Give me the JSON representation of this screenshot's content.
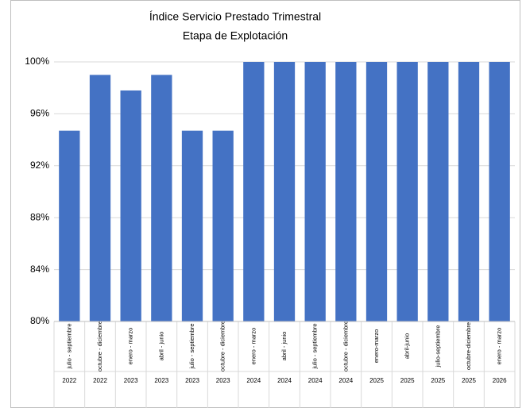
{
  "chart_data": {
    "type": "bar",
    "title": "Índice Servicio Prestado Trimestral",
    "subtitle": "Etapa de Explotación",
    "categories": [
      "julio - septiembre",
      "octubre - diciembre",
      "enero - marzo",
      "abril - junio",
      "julio - septiembre",
      "octubre - diciembre",
      "enero - marzo",
      "abril - junio",
      "julio - septiembre",
      "octubre - diciembre",
      "enero-marzo",
      "abril-junio",
      "julio-septiembre",
      "octubre-diciembre",
      "enero - marzo"
    ],
    "years": [
      "2022",
      "2022",
      "2023",
      "2023",
      "2023",
      "2023",
      "2024",
      "2024",
      "2024",
      "2024",
      "2025",
      "2025",
      "2025",
      "2025",
      "2026"
    ],
    "values": [
      94.7,
      99.0,
      97.8,
      99.0,
      94.7,
      94.7,
      100,
      100,
      100,
      100,
      100,
      100,
      100,
      100,
      100
    ],
    "color": "#4472c4",
    "ylim": [
      80,
      100
    ],
    "yticks": [
      {
        "value": 80,
        "label": "80%"
      },
      {
        "value": 84,
        "label": "84%"
      },
      {
        "value": 88,
        "label": "88%"
      },
      {
        "value": 92,
        "label": "92%"
      },
      {
        "value": 96,
        "label": "96%"
      },
      {
        "value": 100,
        "label": "100%"
      }
    ],
    "grid": true
  }
}
